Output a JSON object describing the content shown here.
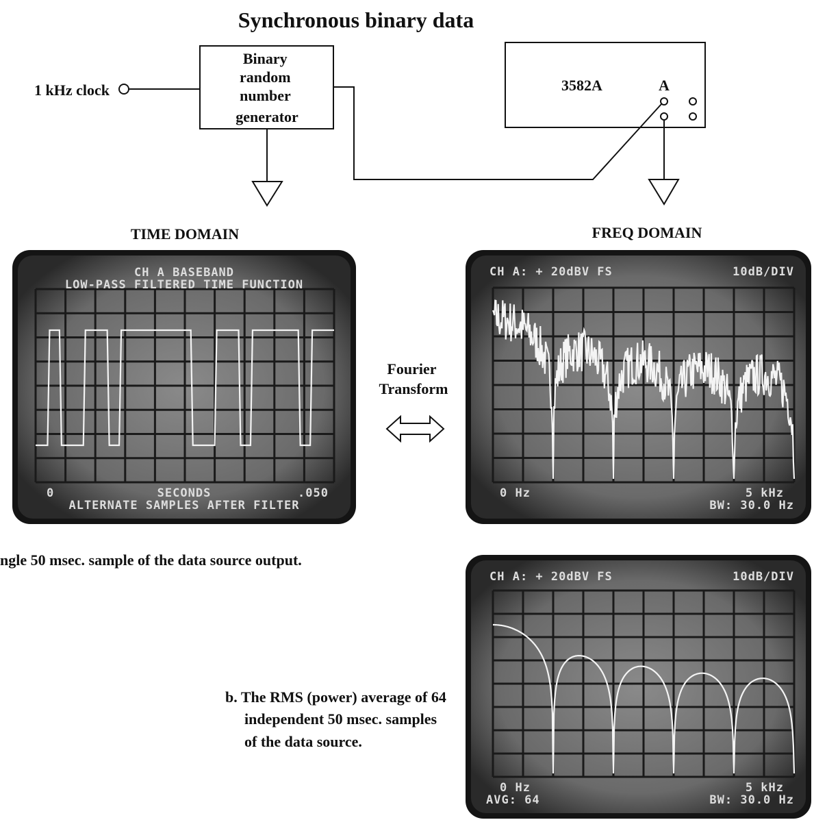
{
  "title": "Synchronous binary data",
  "diagram": {
    "clock_label": "1 kHz clock",
    "generator_label": [
      "Binary",
      "random",
      "number",
      "generator"
    ],
    "analyzer_model": "3582A",
    "analyzer_input": "A"
  },
  "transform_label": [
    "Fourier",
    "Transform"
  ],
  "panels": [
    {
      "heading": "TIME DOMAIN",
      "screen": {
        "top": [
          "CH A BASEBAND",
          "LOW-PASS FILTERED TIME FUNCTION"
        ],
        "bottom_left": "0",
        "bottom_center": "SECONDS",
        "bottom_right": ".050",
        "footer": "ALTERNATE SAMPLES AFTER FILTER"
      }
    },
    {
      "heading": "FREQ DOMAIN",
      "screen": {
        "top_left": "CH A: + 20dBV FS",
        "top_right": "10dB/DIV",
        "bottom_left": "0 Hz",
        "bottom_right": "5 kHz",
        "footer_right": "BW: 30.0 Hz"
      }
    },
    {
      "screen": {
        "top_left": "CH A: + 20dBV FS",
        "top_right": "10dB/DIV",
        "bottom_left": "0 Hz",
        "bottom_right": "5 kHz",
        "footer_left": "AVG: 64",
        "footer_right": "BW: 30.0 Hz"
      }
    }
  ],
  "captions": {
    "a": "ngle 50 msec. sample of the data source output.",
    "b": [
      "b. The RMS (power) average of 64",
      "independent 50 msec. samples",
      "of the data source."
    ]
  }
}
